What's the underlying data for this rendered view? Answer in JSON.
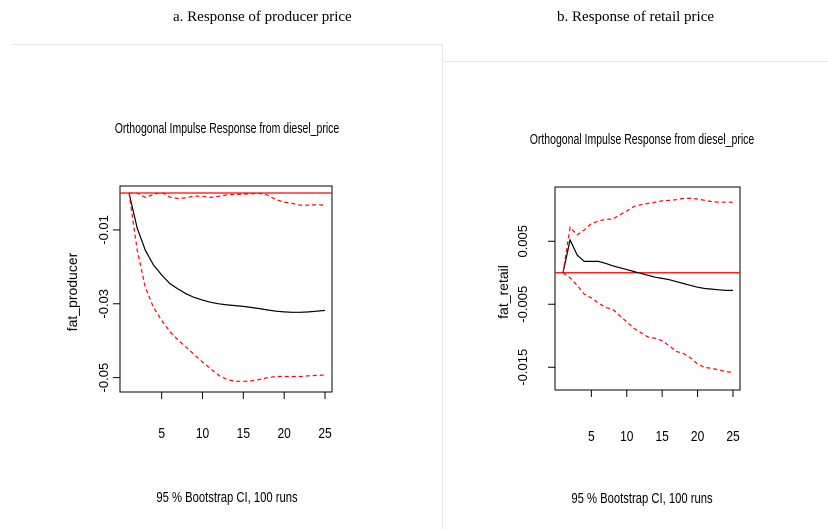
{
  "figure": {
    "left_caption": "a. Response of producer price",
    "right_caption": "b. Response of retail price"
  },
  "chart_data": [
    {
      "type": "line",
      "title": "Orthogonal Impulse Response from diesel_price",
      "xlabel": "95 % Bootstrap CI, 100 runs",
      "ylabel": "fat_producer",
      "xlim": [
        1,
        25
      ],
      "ylim": [
        -0.052,
        0.0
      ],
      "xticks": [
        "5",
        "10",
        "15",
        "20",
        "25"
      ],
      "yticks": [
        {
          "value": -0.01,
          "label": "-0.01"
        },
        {
          "value": -0.03,
          "label": "-0.03"
        },
        {
          "value": -0.05,
          "label": "-0.05"
        }
      ],
      "reference_line": 0,
      "x": [
        1,
        2,
        3,
        4,
        5,
        6,
        7,
        8,
        9,
        10,
        11,
        12,
        13,
        14,
        15,
        16,
        17,
        18,
        19,
        20,
        21,
        22,
        23,
        24,
        25
      ],
      "series": [
        {
          "role": "impulse-response",
          "color": "#000000",
          "dashed": false,
          "values": [
            0,
            -0.0095,
            -0.0155,
            -0.0195,
            -0.0222,
            -0.0245,
            -0.026,
            -0.0273,
            -0.0283,
            -0.029,
            -0.0296,
            -0.03,
            -0.0303,
            -0.0305,
            -0.0307,
            -0.031,
            -0.0313,
            -0.0317,
            -0.032,
            -0.0322,
            -0.0323,
            -0.0323,
            -0.0322,
            -0.032,
            -0.0318
          ]
        },
        {
          "role": "upper-ci",
          "color": "#ff0000",
          "dashed": true,
          "values": [
            0,
            0.0,
            -0.0012,
            -0.0004,
            0.0002,
            -0.0011,
            -0.0015,
            -0.0013,
            -0.0008,
            -0.0009,
            -0.0012,
            -0.0009,
            -0.0005,
            -0.0004,
            -0.0003,
            -0.0002,
            -0.0001,
            -0.0006,
            -0.0018,
            -0.0025,
            -0.0028,
            -0.0033,
            -0.0033,
            -0.0032,
            -0.0033
          ]
        },
        {
          "role": "lower-ci",
          "color": "#ff0000",
          "dashed": true,
          "values": [
            0,
            -0.0155,
            -0.0255,
            -0.031,
            -0.0345,
            -0.0375,
            -0.0398,
            -0.0418,
            -0.0438,
            -0.0458,
            -0.0476,
            -0.0494,
            -0.0505,
            -0.051,
            -0.051,
            -0.0509,
            -0.0505,
            -0.05,
            -0.0497,
            -0.0497,
            -0.0497,
            -0.0497,
            -0.0495,
            -0.0494,
            -0.0493
          ]
        }
      ]
    },
    {
      "type": "line",
      "title": "Orthogonal Impulse Response from diesel_price",
      "xlabel": "95 % Bootstrap CI, 100 runs",
      "ylabel": "fat_retail",
      "xlim": [
        1,
        25
      ],
      "ylim": [
        -0.0175,
        0.0125
      ],
      "xticks": [
        "5",
        "10",
        "15",
        "20",
        "25"
      ],
      "yticks": [
        {
          "value": 0.005,
          "label": "0.005"
        },
        {
          "value": -0.005,
          "label": "-0.005"
        },
        {
          "value": -0.015,
          "label": "-0.015"
        }
      ],
      "reference_line": 0,
      "x": [
        1,
        2,
        3,
        4,
        5,
        6,
        7,
        8,
        9,
        10,
        11,
        12,
        13,
        14,
        15,
        16,
        17,
        18,
        19,
        20,
        21,
        22,
        23,
        24,
        25
      ],
      "series": [
        {
          "role": "impulse-response",
          "color": "#000000",
          "dashed": false,
          "values": [
            0,
            0.0052,
            0.0028,
            0.0018,
            0.0018,
            0.0018,
            0.0015,
            0.0011,
            0.0008,
            0.0005,
            0.0002,
            -0.0001,
            -0.0004,
            -0.0007,
            -0.0009,
            -0.0011,
            -0.0014,
            -0.0017,
            -0.002,
            -0.0023,
            -0.0025,
            -0.0026,
            -0.0027,
            -0.0028,
            -0.0028
          ]
        },
        {
          "role": "upper-ci",
          "color": "#ff0000",
          "dashed": true,
          "values": [
            0,
            0.0072,
            0.006,
            0.0068,
            0.0078,
            0.0082,
            0.0085,
            0.0085,
            0.0092,
            0.0098,
            0.0105,
            0.0108,
            0.011,
            0.0112,
            0.0114,
            0.0115,
            0.0116,
            0.0118,
            0.0118,
            0.0117,
            0.0115,
            0.0113,
            0.0112,
            0.0112,
            0.0112
          ]
        },
        {
          "role": "lower-ci",
          "color": "#ff0000",
          "dashed": true,
          "values": [
            0,
            -0.0008,
            -0.002,
            -0.0034,
            -0.004,
            -0.0048,
            -0.0055,
            -0.0058,
            -0.0068,
            -0.0078,
            -0.0088,
            -0.0095,
            -0.0102,
            -0.0104,
            -0.0108,
            -0.0116,
            -0.0125,
            -0.0128,
            -0.0135,
            -0.0145,
            -0.015,
            -0.0152,
            -0.0154,
            -0.0157,
            -0.0158
          ]
        }
      ]
    }
  ]
}
